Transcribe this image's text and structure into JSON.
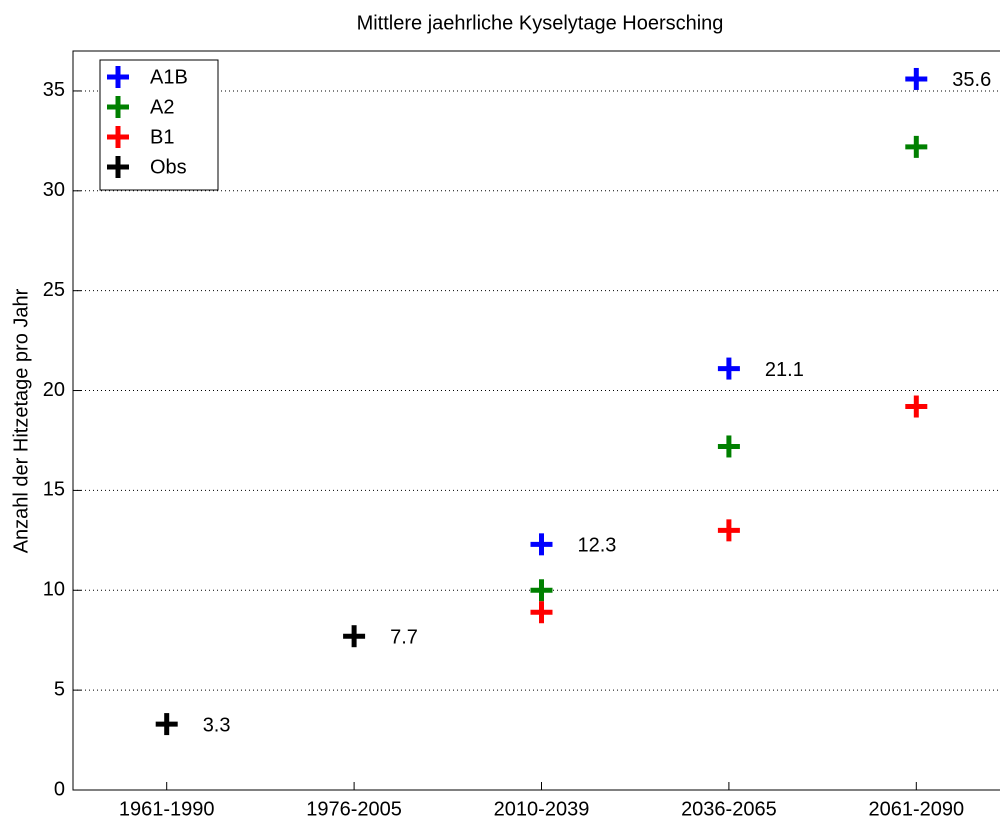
{
  "chart_data": {
    "type": "scatter",
    "title": "Mittlere jaehrliche Kyselytage Hoersching",
    "ylabel": "Anzahl der Hitzetage pro Jahr",
    "categories": [
      "1961-1990",
      "1976-2005",
      "2010-2039",
      "2036-2065",
      "2061-2090"
    ],
    "series": [
      {
        "name": "A1B",
        "color": "#0000ff",
        "values": [
          null,
          null,
          12.3,
          21.1,
          35.6
        ],
        "show_values": true
      },
      {
        "name": "A2",
        "color": "#008000",
        "values": [
          null,
          null,
          10.0,
          17.2,
          32.2
        ],
        "show_values": false
      },
      {
        "name": "B1",
        "color": "#ff0000",
        "values": [
          null,
          null,
          8.9,
          13.0,
          19.2
        ],
        "show_values": false
      },
      {
        "name": "Obs",
        "color": "#000000",
        "values": [
          3.3,
          7.7,
          null,
          null,
          null
        ],
        "show_values": true
      }
    ],
    "ylim": [
      0,
      37
    ],
    "yticks": [
      0,
      5,
      10,
      15,
      20,
      25,
      30,
      35
    ],
    "grid": true,
    "legend": "upper left"
  }
}
